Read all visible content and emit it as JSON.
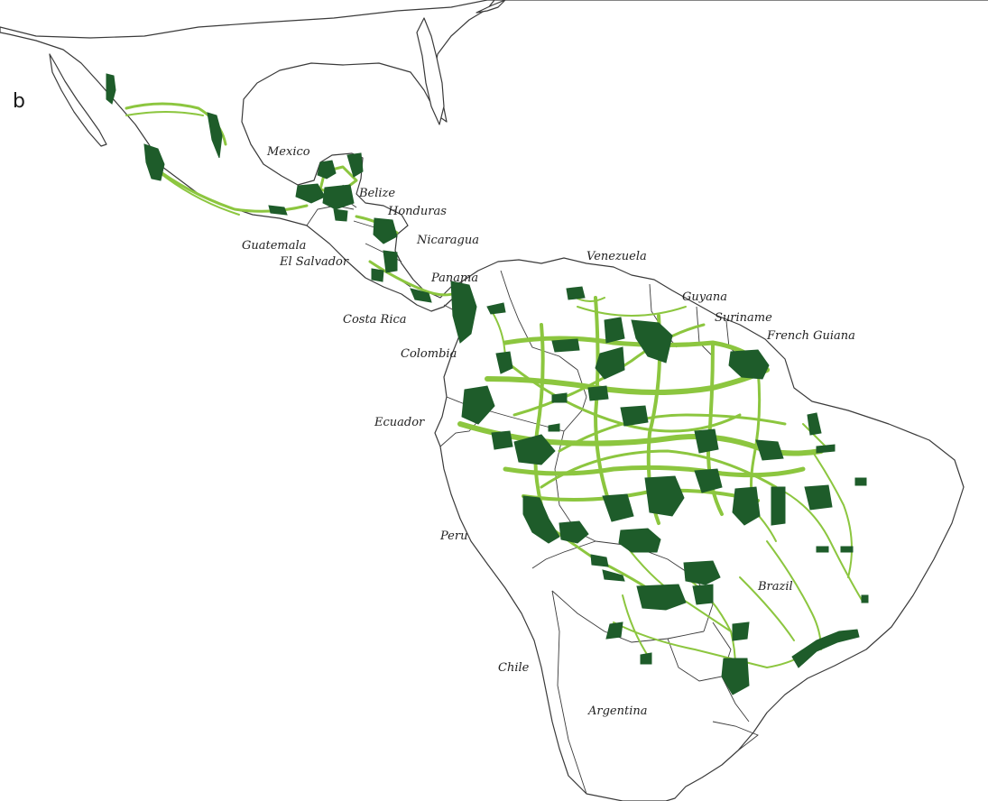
{
  "figure": {
    "panel_label": "b"
  },
  "legend_colors": {
    "core_habitat": "#1e5c2a",
    "corridor": "#8cc63f",
    "land": "#ffffff",
    "outline": "#3a3a3a"
  },
  "country_labels": {
    "mexico": "Mexico",
    "belize": "Belize",
    "honduras": "Honduras",
    "guatemala": "Guatemala",
    "nicaragua": "Nicaragua",
    "el_salvador": "El Salvador",
    "panama": "Panama",
    "costa_rica": "Costa Rica",
    "venezuela": "Venezuela",
    "guyana": "Guyana",
    "suriname": "Suriname",
    "french_guiana": "French Guiana",
    "colombia": "Colombia",
    "ecuador": "Ecuador",
    "peru": "Peru",
    "brazil": "Brazil",
    "chile": "Chile",
    "argentina": "Argentina"
  }
}
